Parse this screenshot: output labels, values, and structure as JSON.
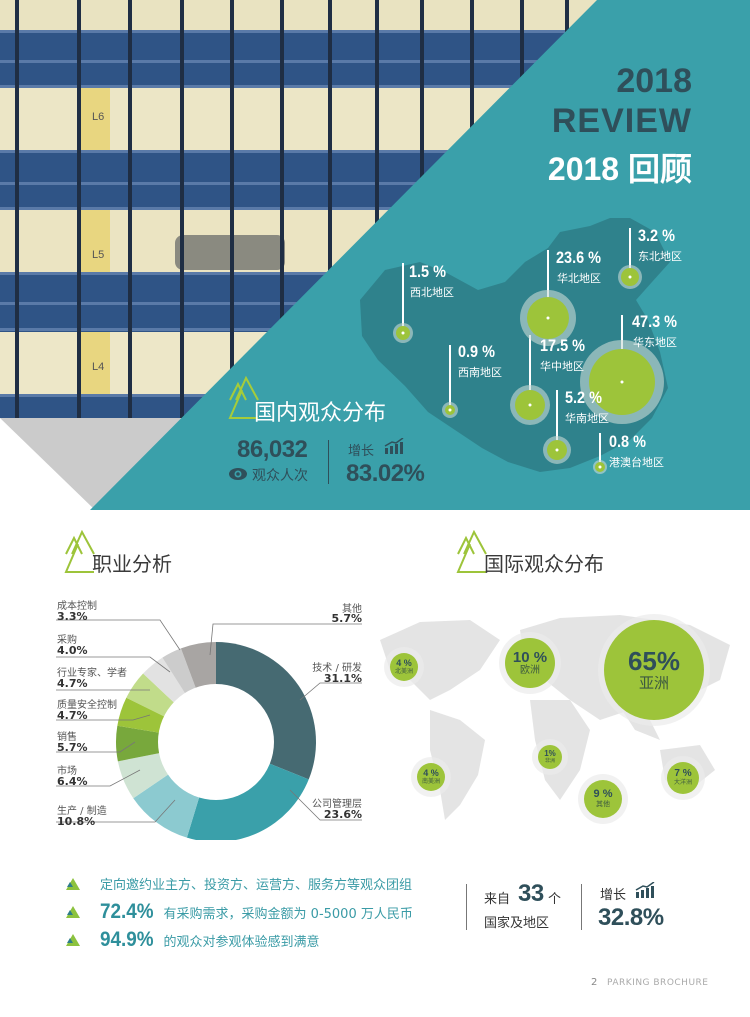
{
  "header": {
    "title_line1": "2018",
    "title_line2": "REVIEW",
    "title_line3": "2018 回顾"
  },
  "colors": {
    "teal": "#3aa0aa",
    "teal_dark_map": "#2f7e88",
    "title_dark": "#2f4f5a",
    "green": "#9dc43a",
    "gray_triangle": "#c9c9c9"
  },
  "domestic": {
    "section_title": "国内观众分布",
    "visitors_value": "86,032",
    "visitors_label": "观众人次",
    "growth_label": "增长",
    "growth_value": "83.02%",
    "regions": [
      {
        "name": "西北地区",
        "pct": "1.5 %"
      },
      {
        "name": "华北地区",
        "pct": "23.6 %"
      },
      {
        "name": "东北地区",
        "pct": "3.2 %"
      },
      {
        "name": "华东地区",
        "pct": "47.3 %"
      },
      {
        "name": "西南地区",
        "pct": "0.9 %"
      },
      {
        "name": "华中地区",
        "pct": "17.5 %"
      },
      {
        "name": "华南地区",
        "pct": "5.2 %"
      },
      {
        "name": "港澳台地区",
        "pct": "0.8 %"
      }
    ]
  },
  "occupation": {
    "section_title": "职业分析",
    "items": [
      {
        "name": "成本控制",
        "pct": "3.3%"
      },
      {
        "name": "采购",
        "pct": "4.0%"
      },
      {
        "name": "行业专家、学者",
        "pct": "4.7%"
      },
      {
        "name": "质量安全控制",
        "pct": "4.7%"
      },
      {
        "name": "销售",
        "pct": "5.7%"
      },
      {
        "name": "市场",
        "pct": "6.4%"
      },
      {
        "name": "生产 / 制造",
        "pct": "10.8%"
      },
      {
        "name": "其他",
        "pct": "5.7%"
      },
      {
        "name": "技术 / 研发",
        "pct": "31.1%"
      },
      {
        "name": "公司管理层",
        "pct": "23.6%"
      }
    ]
  },
  "chart_data": [
    {
      "type": "pie",
      "title": "职业分析",
      "style": "donut",
      "categories": [
        "技术 / 研发",
        "公司管理层",
        "生产 / 制造",
        "市场",
        "销售",
        "质量安全控制",
        "行业专家、学者",
        "采购",
        "成本控制",
        "其他"
      ],
      "values": [
        31.1,
        23.6,
        10.8,
        6.4,
        5.7,
        4.7,
        4.7,
        4.0,
        3.3,
        5.7
      ],
      "colors": [
        "#466a72",
        "#3aa0aa",
        "#8ccad0",
        "#cfe3d3",
        "#78a83c",
        "#9dc43a",
        "#c1dc8a",
        "#e2e2e2",
        "#cccccc",
        "#a8a5a3"
      ]
    },
    {
      "type": "map-bubble",
      "title": "国内观众分布",
      "categories": [
        "西北地区",
        "华北地区",
        "东北地区",
        "华东地区",
        "西南地区",
        "华中地区",
        "华南地区",
        "港澳台地区"
      ],
      "values": [
        1.5,
        23.6,
        3.2,
        47.3,
        0.9,
        17.5,
        5.2,
        0.8
      ]
    },
    {
      "type": "map-bubble",
      "title": "国际观众分布",
      "categories": [
        "亚洲",
        "欧洲",
        "其他",
        "大洋洲",
        "北美洲",
        "南美洲",
        "非洲"
      ],
      "values": [
        65,
        10,
        9,
        7,
        4,
        4,
        1
      ]
    }
  ],
  "international": {
    "section_title": "国际观众分布",
    "bubbles": [
      {
        "name": "亚洲",
        "pct": "65%"
      },
      {
        "name": "欧洲",
        "pct": "10 %"
      },
      {
        "name": "北美洲",
        "pct": "4 %"
      },
      {
        "name": "南美洲",
        "pct": "4 %"
      },
      {
        "name": "非洲",
        "pct": "1%"
      },
      {
        "name": "其他",
        "pct": "9 %"
      },
      {
        "name": "大洋洲",
        "pct": "7 %"
      }
    ],
    "from_label": "来自",
    "countries_count": "33",
    "countries_unit": "个",
    "countries_label": "国家及地区",
    "growth_label": "增长",
    "growth_value": "32.8%"
  },
  "bullets": [
    {
      "big": "",
      "text": "定向邀约业主方、投资方、运营方、服务方等观众团组"
    },
    {
      "big": "72.4%",
      "text": "有采购需求，采购金额为 0-5000 万人民币"
    },
    {
      "big": "94.9%",
      "text": "的观众对参观体验感到满意"
    }
  ],
  "footer": {
    "page_number": "2",
    "brochure_label": "PARKING BROCHURE"
  }
}
